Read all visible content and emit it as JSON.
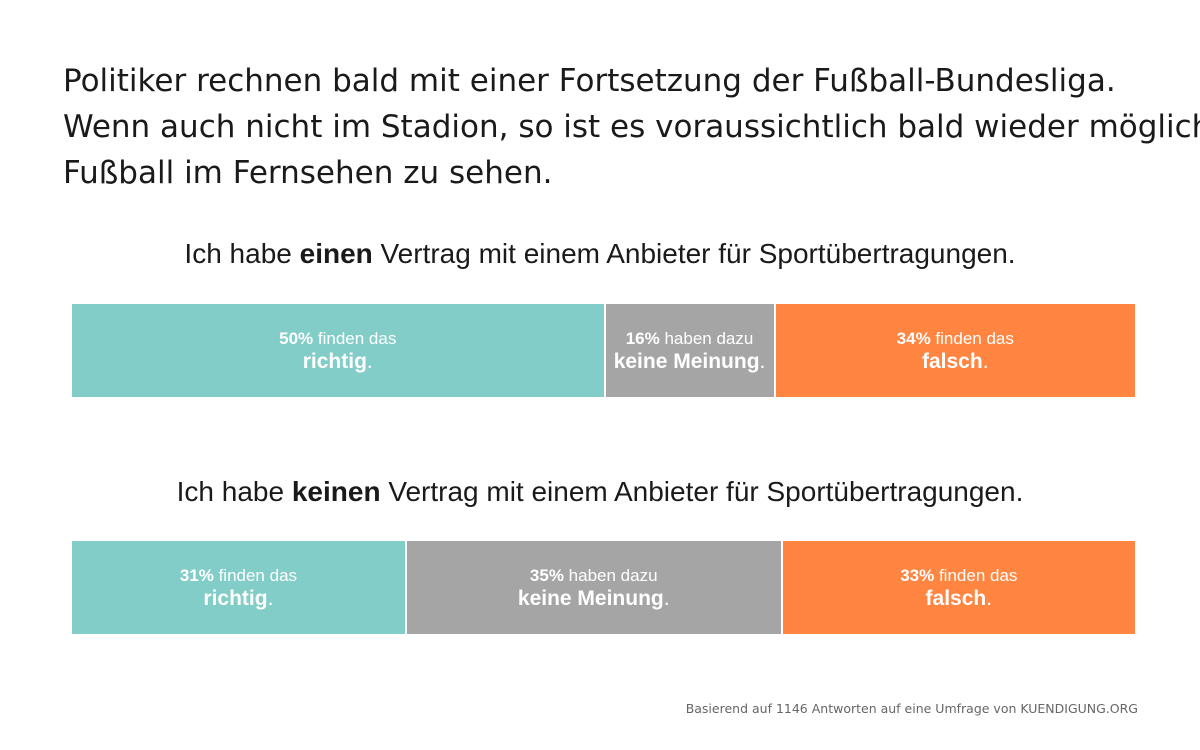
{
  "title_lines": [
    "Politiker rechnen bald mit einer Fortsetzung der Fußball-Bundesliga.",
    "Wenn auch nicht im Stadion, so ist es voraussichtlich bald wieder möglich",
    "Fußball im Fernsehen zu sehen."
  ],
  "source": "Basierend auf 1146 Antworten auf eine Umfrage von KUENDIGUNG.ORG",
  "colors": {
    "richtig": "#82cdc8",
    "keine_meinung": "#a5a5a5",
    "falsch": "#ff8540"
  },
  "chart_data": [
    {
      "type": "bar",
      "stacked": true,
      "title_parts": [
        "Ich habe ",
        "einen",
        " Vertrag mit einem Anbieter für Sportübertragungen."
      ],
      "segments": [
        {
          "pct": "50%",
          "value": 50,
          "pre": " finden das",
          "term": "richtig",
          "end": ".",
          "color": "#82cdc8"
        },
        {
          "pct": "16%",
          "value": 16,
          "pre": " haben dazu",
          "term": "keine Meinung",
          "end": ".",
          "color": "#a5a5a5"
        },
        {
          "pct": "34%",
          "value": 34,
          "pre": " finden das",
          "term": "falsch",
          "end": ".",
          "color": "#ff8540"
        }
      ]
    },
    {
      "type": "bar",
      "stacked": true,
      "title_parts": [
        "Ich habe ",
        "keinen",
        " Vertrag mit einem Anbieter für Sportübertragungen."
      ],
      "segments": [
        {
          "pct": "31%",
          "value": 31,
          "pre": " finden das",
          "term": "richtig",
          "end": ".",
          "color": "#82cdc8"
        },
        {
          "pct": "35%",
          "value": 35,
          "pre": " haben dazu",
          "term": "keine Meinung",
          "end": ".",
          "color": "#a5a5a5"
        },
        {
          "pct": "33%",
          "value": 33,
          "pre": " finden das",
          "term": "falsch",
          "end": ".",
          "color": "#ff8540"
        }
      ]
    }
  ]
}
